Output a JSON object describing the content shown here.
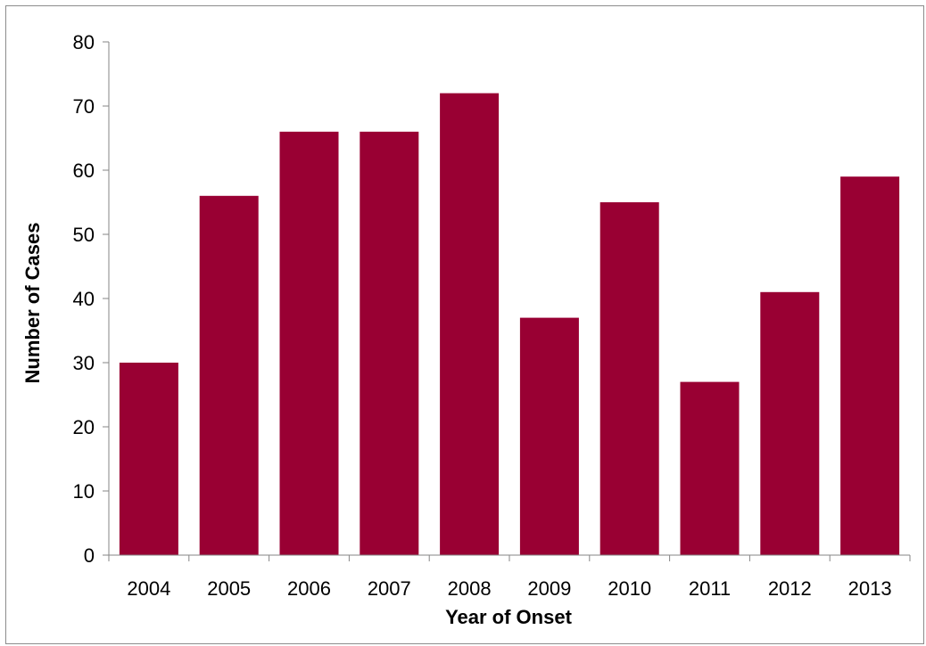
{
  "chart_data": {
    "type": "bar",
    "categories": [
      "2004",
      "2005",
      "2006",
      "2007",
      "2008",
      "2009",
      "2010",
      "2011",
      "2012",
      "2013"
    ],
    "values": [
      30,
      56,
      66,
      66,
      72,
      37,
      55,
      27,
      41,
      59
    ],
    "title": "",
    "xlabel": "Year of Onset",
    "ylabel": "Number of Cases",
    "ylim": [
      0,
      80
    ],
    "yticks": [
      0,
      10,
      20,
      30,
      40,
      50,
      60,
      70,
      80
    ],
    "grid": false,
    "legend": "none",
    "bar_color": "#990033",
    "axis_color": "#868686"
  }
}
